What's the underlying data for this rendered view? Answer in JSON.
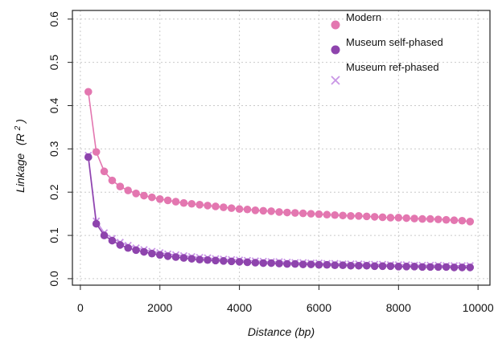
{
  "colors": {
    "modern": "#e377b0",
    "museum_self_phased": "#8e44ad",
    "museum_ref_phased": "#c996e6",
    "grid": "#c9c9c9",
    "frame": "#222222"
  },
  "chart_data": {
    "type": "line",
    "xlabel": "Distance (bp)",
    "ylabel_main": "Linkage",
    "ylabel_unit_prefix": "(R",
    "ylabel_unit_sup": "2",
    "ylabel_unit_suffix": ")",
    "xlim": [
      -200,
      10300
    ],
    "ylim": [
      -0.015,
      0.62
    ],
    "xticks": [
      0,
      2000,
      4000,
      6000,
      8000,
      10000
    ],
    "xtick_labels": [
      "0",
      "2000",
      "4000",
      "6000",
      "8000",
      "10000"
    ],
    "yticks": [
      0.0,
      0.1,
      0.2,
      0.3,
      0.4,
      0.5,
      0.6
    ],
    "ytick_labels": [
      "0.0",
      "0.1",
      "0.2",
      "0.3",
      "0.4",
      "0.5",
      "0.6"
    ],
    "grid": true,
    "legend_position": "top-right",
    "x": [
      200,
      400,
      600,
      800,
      1000,
      1200,
      1400,
      1600,
      1800,
      2000,
      2200,
      2400,
      2600,
      2800,
      3000,
      3200,
      3400,
      3600,
      3800,
      4000,
      4200,
      4400,
      4600,
      4800,
      5000,
      5200,
      5400,
      5600,
      5800,
      6000,
      6200,
      6400,
      6600,
      6800,
      7000,
      7200,
      7400,
      7600,
      7800,
      8000,
      8200,
      8400,
      8600,
      8800,
      9000,
      9200,
      9400,
      9600,
      9800
    ],
    "series": [
      {
        "name": "Modern",
        "marker": "circle",
        "color_key": "modern",
        "values": [
          0.432,
          0.293,
          0.248,
          0.227,
          0.213,
          0.204,
          0.197,
          0.192,
          0.188,
          0.184,
          0.181,
          0.178,
          0.175,
          0.173,
          0.171,
          0.169,
          0.167,
          0.165,
          0.163,
          0.161,
          0.16,
          0.158,
          0.157,
          0.156,
          0.154,
          0.153,
          0.152,
          0.151,
          0.15,
          0.149,
          0.148,
          0.147,
          0.146,
          0.145,
          0.145,
          0.144,
          0.143,
          0.142,
          0.141,
          0.141,
          0.14,
          0.139,
          0.138,
          0.138,
          0.137,
          0.136,
          0.135,
          0.134,
          0.132
        ]
      },
      {
        "name": "Museum self-phased",
        "marker": "circle",
        "color_key": "museum_self_phased",
        "values": [
          0.281,
          0.127,
          0.1,
          0.088,
          0.078,
          0.071,
          0.066,
          0.062,
          0.058,
          0.055,
          0.052,
          0.05,
          0.048,
          0.046,
          0.044,
          0.043,
          0.042,
          0.041,
          0.04,
          0.039,
          0.038,
          0.037,
          0.036,
          0.036,
          0.035,
          0.034,
          0.034,
          0.033,
          0.033,
          0.032,
          0.032,
          0.031,
          0.031,
          0.03,
          0.03,
          0.03,
          0.029,
          0.029,
          0.029,
          0.028,
          0.028,
          0.028,
          0.027,
          0.027,
          0.027,
          0.027,
          0.026,
          0.026,
          0.026
        ]
      },
      {
        "name": "Museum ref-phased",
        "marker": "x",
        "color_key": "museum_ref_phased",
        "values": [
          0.285,
          0.133,
          0.106,
          0.093,
          0.084,
          0.077,
          0.071,
          0.067,
          0.063,
          0.06,
          0.057,
          0.055,
          0.053,
          0.051,
          0.049,
          0.048,
          0.046,
          0.045,
          0.044,
          0.043,
          0.042,
          0.041,
          0.04,
          0.039,
          0.039,
          0.038,
          0.037,
          0.037,
          0.036,
          0.036,
          0.035,
          0.035,
          0.034,
          0.034,
          0.034,
          0.033,
          0.033,
          0.033,
          0.032,
          0.032,
          0.032,
          0.031,
          0.031,
          0.031,
          0.031,
          0.03,
          0.03,
          0.03,
          0.03
        ]
      }
    ]
  }
}
